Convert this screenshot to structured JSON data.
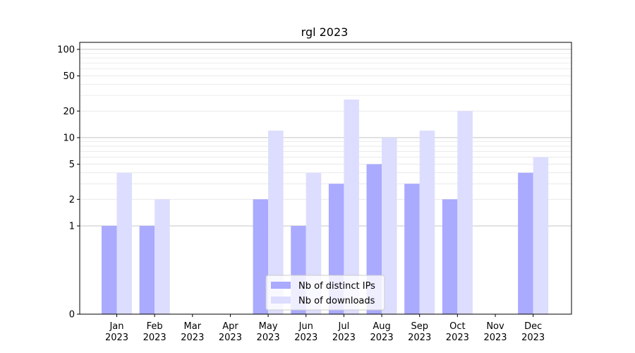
{
  "chart_data": {
    "type": "bar",
    "title": "rgl 2023",
    "xlabel": "",
    "ylabel": "",
    "y_scale": "symlog",
    "ylim": [
      0,
      120
    ],
    "y_ticks": [
      0,
      1,
      2,
      5,
      10,
      20,
      50,
      100
    ],
    "grid": "horizontal",
    "legend_position": "bottom-center",
    "categories": [
      "Jan\n2023",
      "Feb\n2023",
      "Mar\n2023",
      "Apr\n2023",
      "May\n2023",
      "Jun\n2023",
      "Jul\n2023",
      "Aug\n2023",
      "Sep\n2023",
      "Oct\n2023",
      "Nov\n2023",
      "Dec\n2023"
    ],
    "series": [
      {
        "name": "Nb of distinct IPs",
        "color": "#aaaaff",
        "values": [
          1,
          1,
          0,
          0,
          2,
          1,
          3,
          5,
          3,
          2,
          0,
          4
        ]
      },
      {
        "name": "Nb of downloads",
        "color": "#ddddff",
        "values": [
          4,
          2,
          0,
          0,
          12,
          4,
          27,
          10,
          12,
          20,
          0,
          6
        ]
      }
    ]
  }
}
